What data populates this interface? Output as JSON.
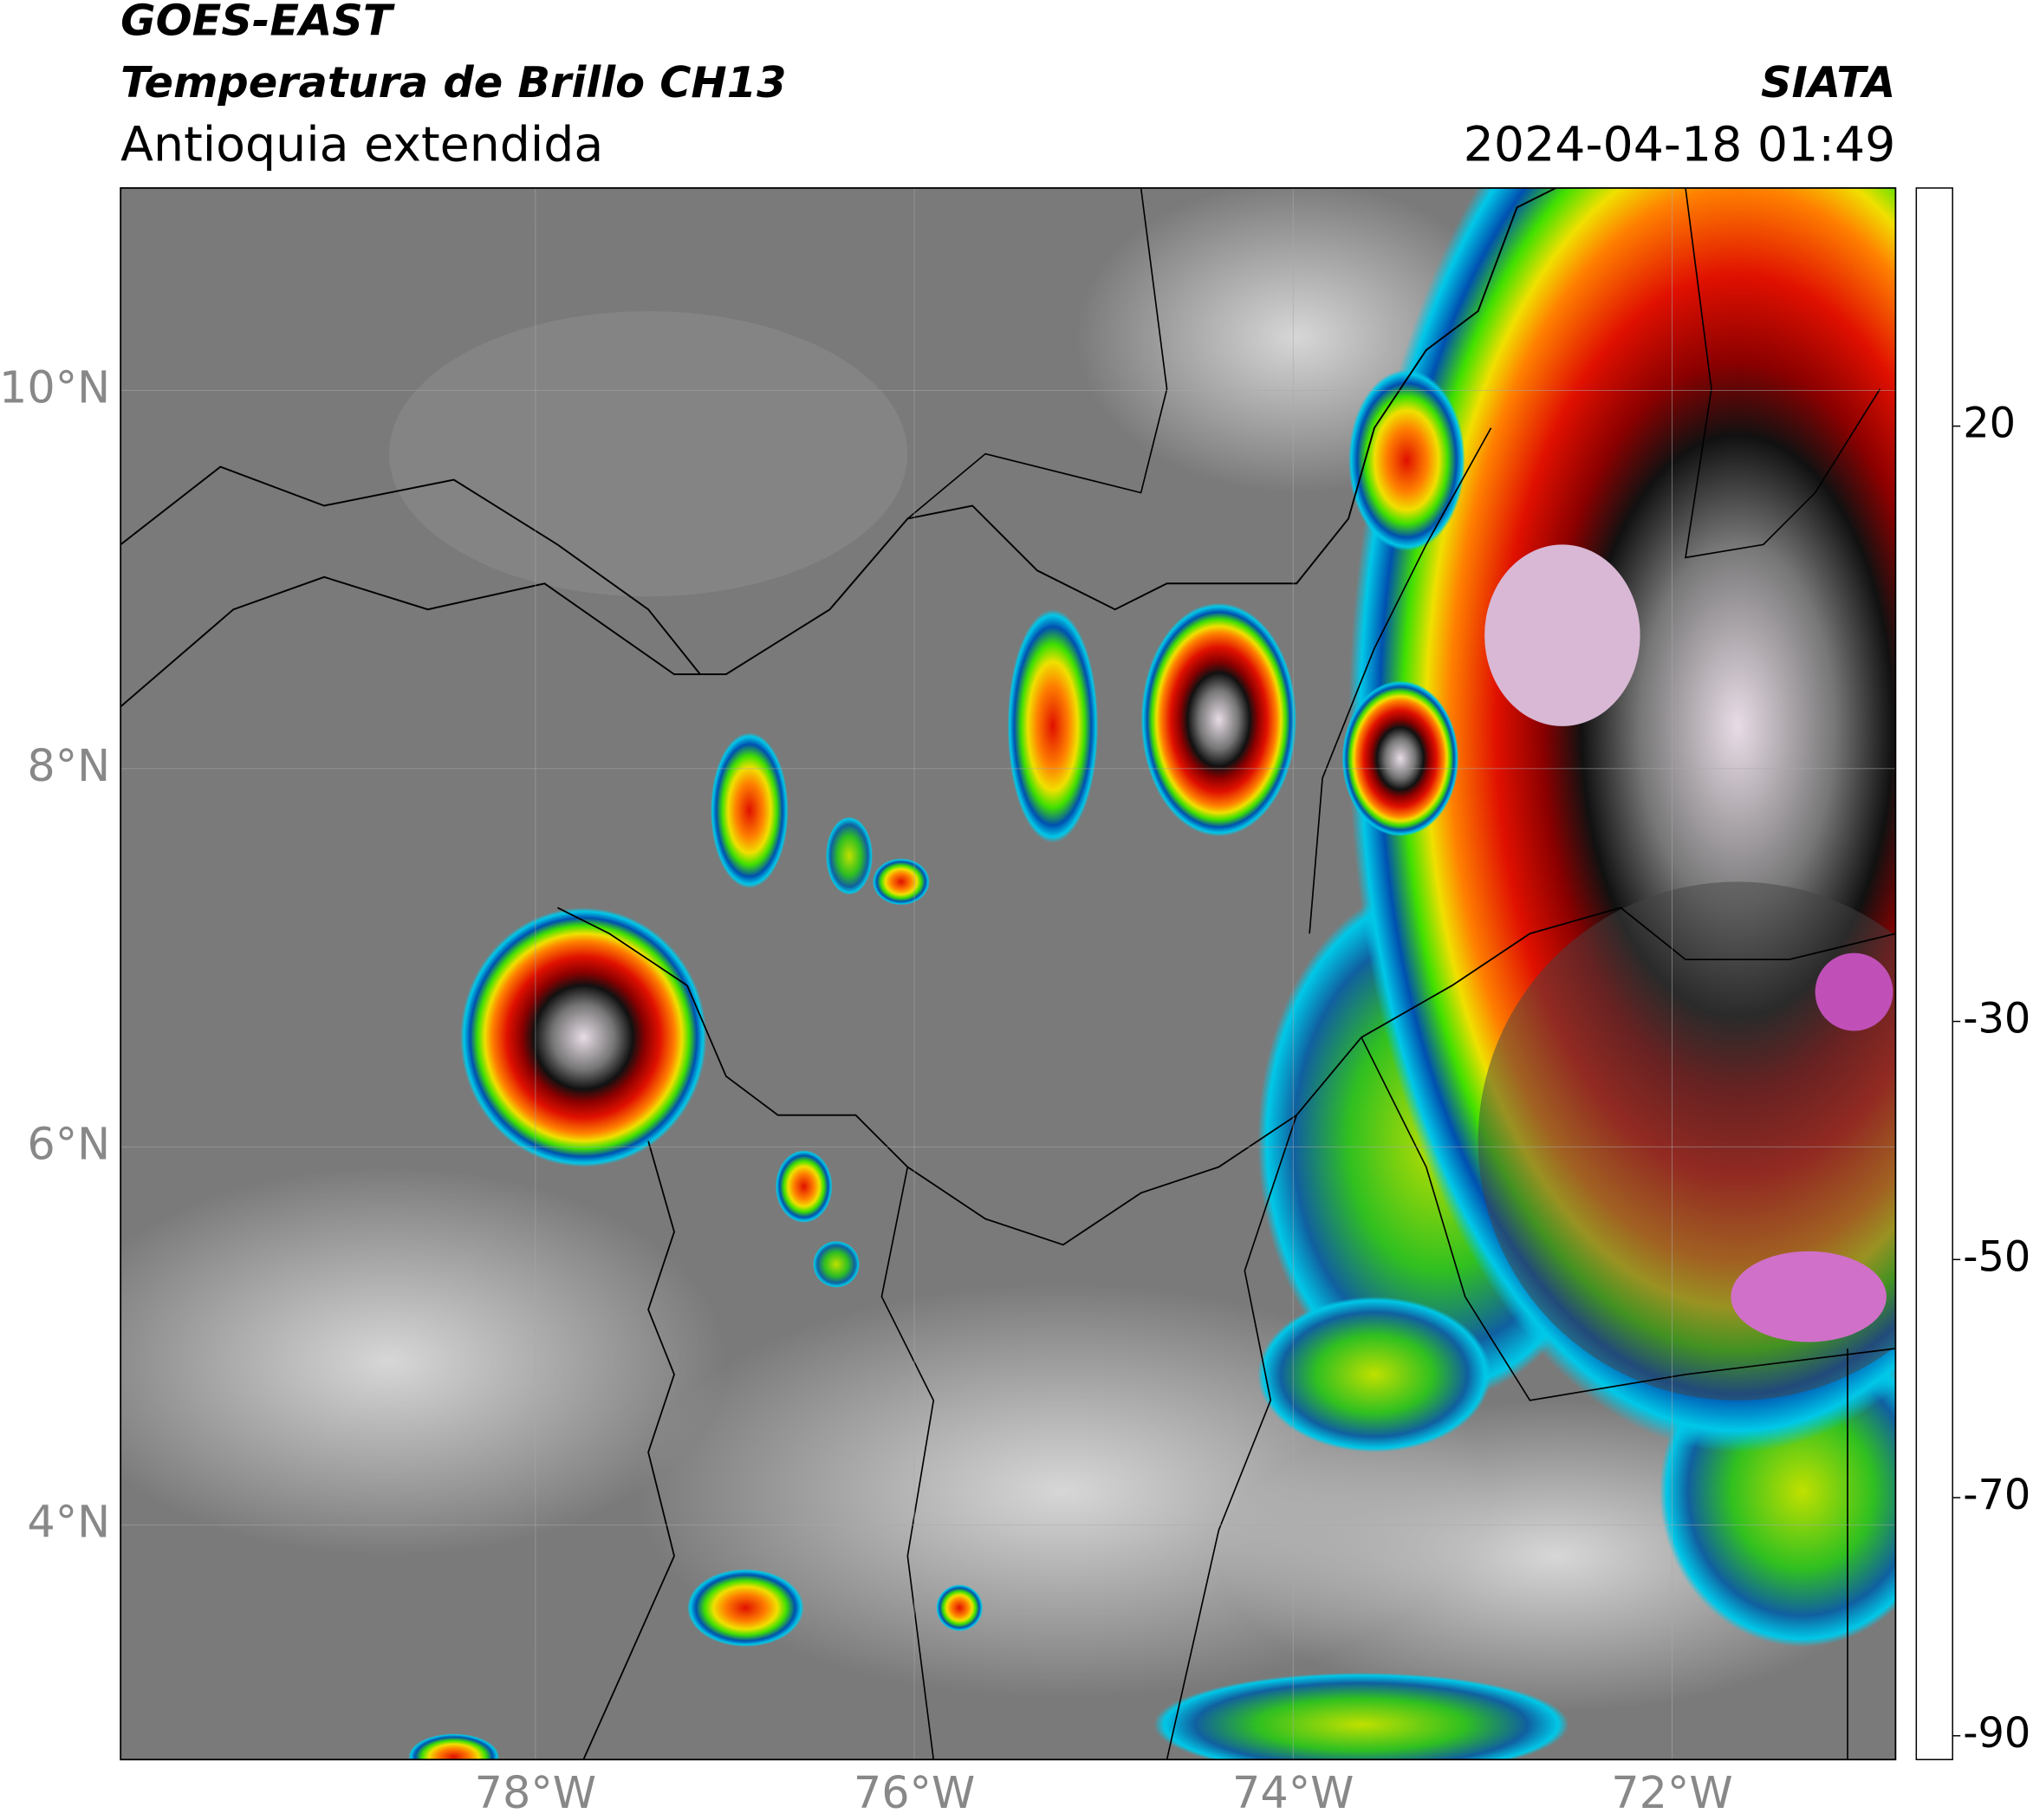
{
  "map": {
    "title": "GOES-EAST",
    "subtitle": "Temperatura de Brillo CH13",
    "region": "Antioquia extendida",
    "source": "SIATA",
    "datetime": "2024-04-18 01:49",
    "lon_range": [
      -80.19,
      -70.82
    ],
    "lat_range": [
      2.76,
      11.07
    ],
    "lat_ticks": [
      {
        "value": 10,
        "label": "10°N"
      },
      {
        "value": 8,
        "label": "8°N"
      },
      {
        "value": 6,
        "label": "6°N"
      },
      {
        "value": 4,
        "label": "4°N"
      }
    ],
    "lon_ticks": [
      {
        "value": -78,
        "label": "78°W"
      },
      {
        "value": -76,
        "label": "76°W"
      },
      {
        "value": -74,
        "label": "74°W"
      },
      {
        "value": -72,
        "label": "72°W"
      }
    ],
    "colorbar": {
      "range": [
        -92,
        40
      ],
      "ticks": [
        20,
        -30,
        -50,
        -70,
        -90
      ]
    }
  }
}
